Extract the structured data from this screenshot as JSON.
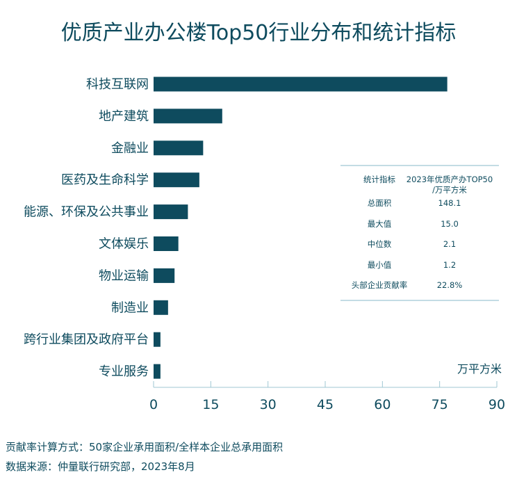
{
  "colors": {
    "bar": "#0e4b5e",
    "text": "#0e4b5e",
    "rule": "#9fc7d3"
  },
  "chart_data": {
    "type": "bar",
    "orientation": "horizontal",
    "title": "优质产业办公楼Top50行业分布和统计指标",
    "unit_label": "万平方米",
    "categories": [
      "科技互联网",
      "地产建筑",
      "金融业",
      "医药及生命科学",
      "能源、环保及公共事业",
      "文体娱乐",
      "物业运输",
      "制造业",
      "跨行业集团及政府平台",
      "专业服务"
    ],
    "values": [
      77.0,
      18.0,
      13.0,
      12.0,
      9.0,
      6.5,
      5.5,
      3.8,
      1.8,
      1.8
    ],
    "xlim": [
      0,
      90
    ],
    "xticks": [
      "0",
      "15",
      "30",
      "45",
      "60",
      "75",
      "90"
    ],
    "grid": false,
    "legend": "none"
  },
  "stats_table": {
    "header_label": "统计指标",
    "header_value_line1": "2023年优质产办TOP50",
    "header_value_line2": "/万平方米",
    "rows": [
      {
        "label": "总面积",
        "value": "148.1"
      },
      {
        "label": "最大值",
        "value": "15.0"
      },
      {
        "label": "中位数",
        "value": "2.1"
      },
      {
        "label": "最小值",
        "value": "1.2"
      },
      {
        "label": "头部企业贡献率",
        "value": "22.8%"
      }
    ]
  },
  "footnotes": {
    "formula": "贡献率计算方式：50家企业承用面积/全样本企业总承用面积",
    "source": "数据来源：仲量联行研究部，2023年8月"
  }
}
